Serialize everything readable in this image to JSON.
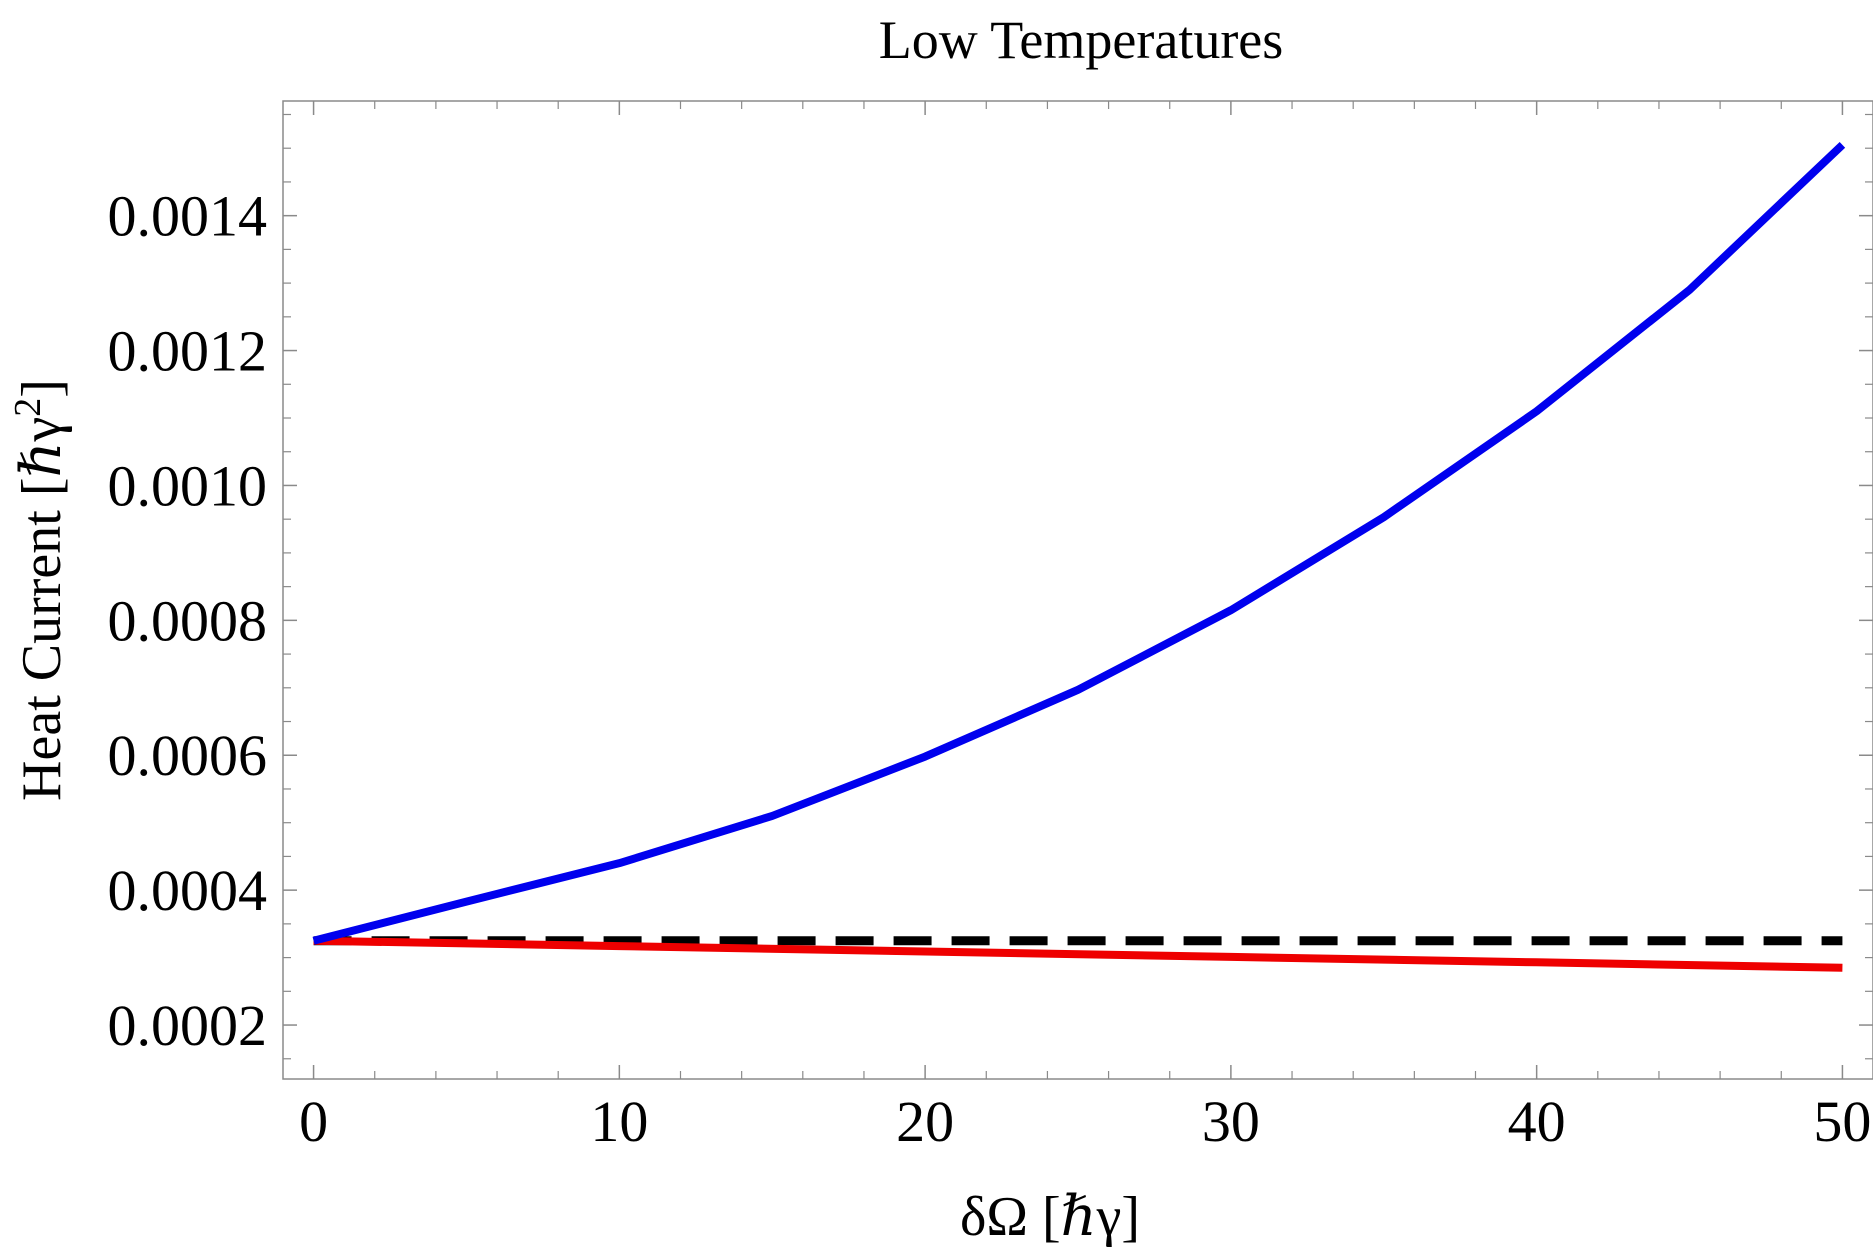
{
  "chart_data": {
    "type": "line",
    "title": "Low Temperatures",
    "xlabel": "δΩ [ℏγ]",
    "ylabel": "Heat Current [ℏγ²]",
    "ylabel_parts": {
      "base": "Heat Current [ℏγ",
      "sup": "2",
      "close": "]"
    },
    "xlim": [
      -1,
      51
    ],
    "ylim": [
      0.00012,
      0.00157
    ],
    "x_ticks": [
      0,
      10,
      20,
      30,
      40,
      50
    ],
    "x_tick_labels": [
      "0",
      "10",
      "20",
      "30",
      "40",
      "50"
    ],
    "y_ticks": [
      0.0002,
      0.0004,
      0.0006,
      0.0008,
      0.001,
      0.0012,
      0.0014
    ],
    "y_tick_labels": [
      "0.0002",
      "0.0004",
      "0.0006",
      "0.0008",
      "0.0010",
      "0.0012",
      "0.0014"
    ],
    "grid": false,
    "series": [
      {
        "name": "blue-curve",
        "color": "#0000ee",
        "style": "solid",
        "x": [
          0,
          5,
          10,
          15,
          20,
          25,
          30,
          35,
          40,
          45,
          50
        ],
        "y": [
          0.000325,
          0.000383,
          0.00044,
          0.00051,
          0.000598,
          0.000697,
          0.000815,
          0.000953,
          0.00111,
          0.00129,
          0.001505
        ]
      },
      {
        "name": "red-curve",
        "color": "#ee0000",
        "style": "solid",
        "x": [
          0,
          10,
          20,
          30,
          40,
          50
        ],
        "y": [
          0.000325,
          0.000317,
          0.000309,
          0.000301,
          0.000293,
          0.000285
        ]
      },
      {
        "name": "black-dashed-reference",
        "color": "#000000",
        "style": "dashed",
        "x": [
          0,
          50
        ],
        "y": [
          0.000325,
          0.000325
        ]
      }
    ]
  }
}
